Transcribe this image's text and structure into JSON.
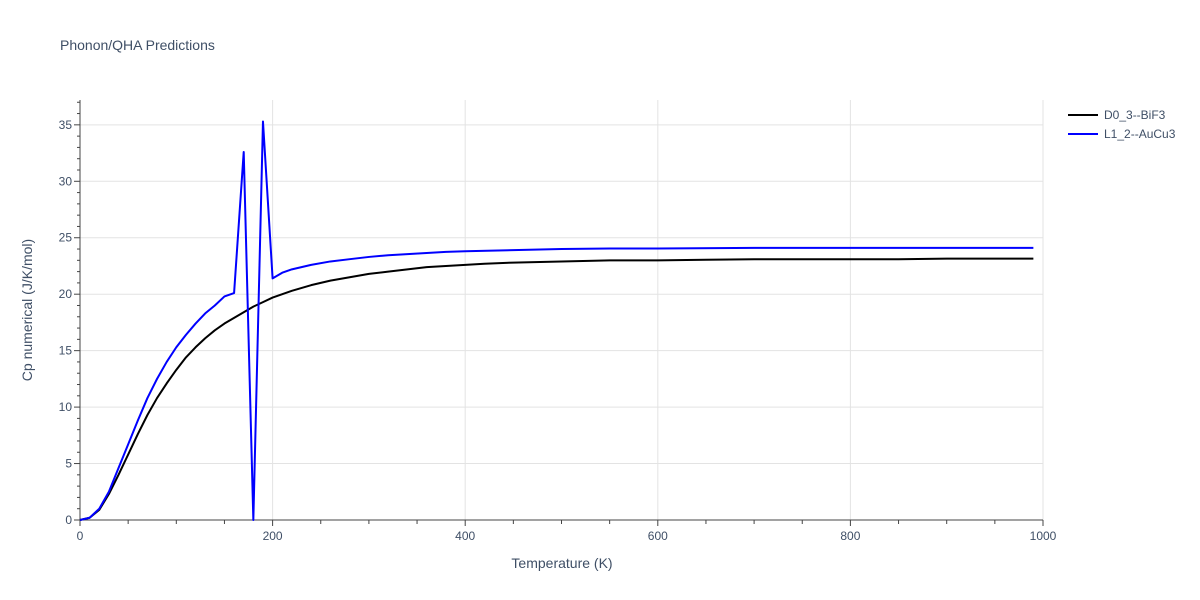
{
  "chart_data": {
    "type": "line",
    "title": "Phonon/QHA Predictions",
    "xlabel": "Temperature (K)",
    "ylabel": "Cp numerical (J/K/mol)",
    "xlim": [
      0,
      1000
    ],
    "ylim": [
      0,
      37.2
    ],
    "xticks": [
      "0",
      "200",
      "400",
      "600",
      "800",
      "1000"
    ],
    "yticks": [
      "0",
      "5",
      "10",
      "15",
      "20",
      "25",
      "30",
      "35"
    ],
    "grid": true,
    "legend_position": "top-right",
    "series": [
      {
        "name": "D0_3--BiF3",
        "color": "#000000",
        "x": [
          0,
          10,
          20,
          30,
          40,
          50,
          60,
          70,
          80,
          90,
          100,
          110,
          120,
          130,
          140,
          150,
          160,
          170,
          180,
          190,
          200,
          210,
          220,
          240,
          260,
          280,
          300,
          320,
          340,
          360,
          380,
          400,
          420,
          450,
          500,
          550,
          600,
          650,
          700,
          750,
          800,
          850,
          900,
          950,
          990
        ],
        "y": [
          0,
          0.2,
          0.9,
          2.3,
          4.0,
          5.8,
          7.6,
          9.3,
          10.8,
          12.1,
          13.3,
          14.4,
          15.3,
          16.1,
          16.8,
          17.4,
          17.9,
          18.4,
          18.9,
          19.3,
          19.7,
          20.0,
          20.3,
          20.8,
          21.2,
          21.5,
          21.8,
          22.0,
          22.2,
          22.4,
          22.5,
          22.6,
          22.7,
          22.8,
          22.9,
          23.0,
          23.0,
          23.05,
          23.1,
          23.1,
          23.1,
          23.1,
          23.15,
          23.15,
          23.15
        ]
      },
      {
        "name": "L1_2--AuCu3",
        "color": "#0000ff",
        "x": [
          0,
          10,
          20,
          30,
          40,
          50,
          60,
          70,
          80,
          90,
          100,
          110,
          120,
          130,
          140,
          150,
          160,
          170,
          180,
          190,
          200,
          210,
          220,
          240,
          260,
          280,
          300,
          320,
          340,
          360,
          380,
          400,
          450,
          500,
          550,
          600,
          700,
          800,
          900,
          990
        ],
        "y": [
          0,
          0.2,
          1.0,
          2.5,
          4.6,
          6.7,
          8.8,
          10.8,
          12.5,
          14.0,
          15.3,
          16.4,
          17.4,
          18.3,
          19.0,
          19.8,
          20.1,
          32.6,
          0,
          35.3,
          21.4,
          21.9,
          22.2,
          22.6,
          22.9,
          23.1,
          23.3,
          23.45,
          23.55,
          23.65,
          23.75,
          23.8,
          23.9,
          24.0,
          24.05,
          24.05,
          24.1,
          24.1,
          24.1,
          24.1
        ]
      }
    ]
  }
}
